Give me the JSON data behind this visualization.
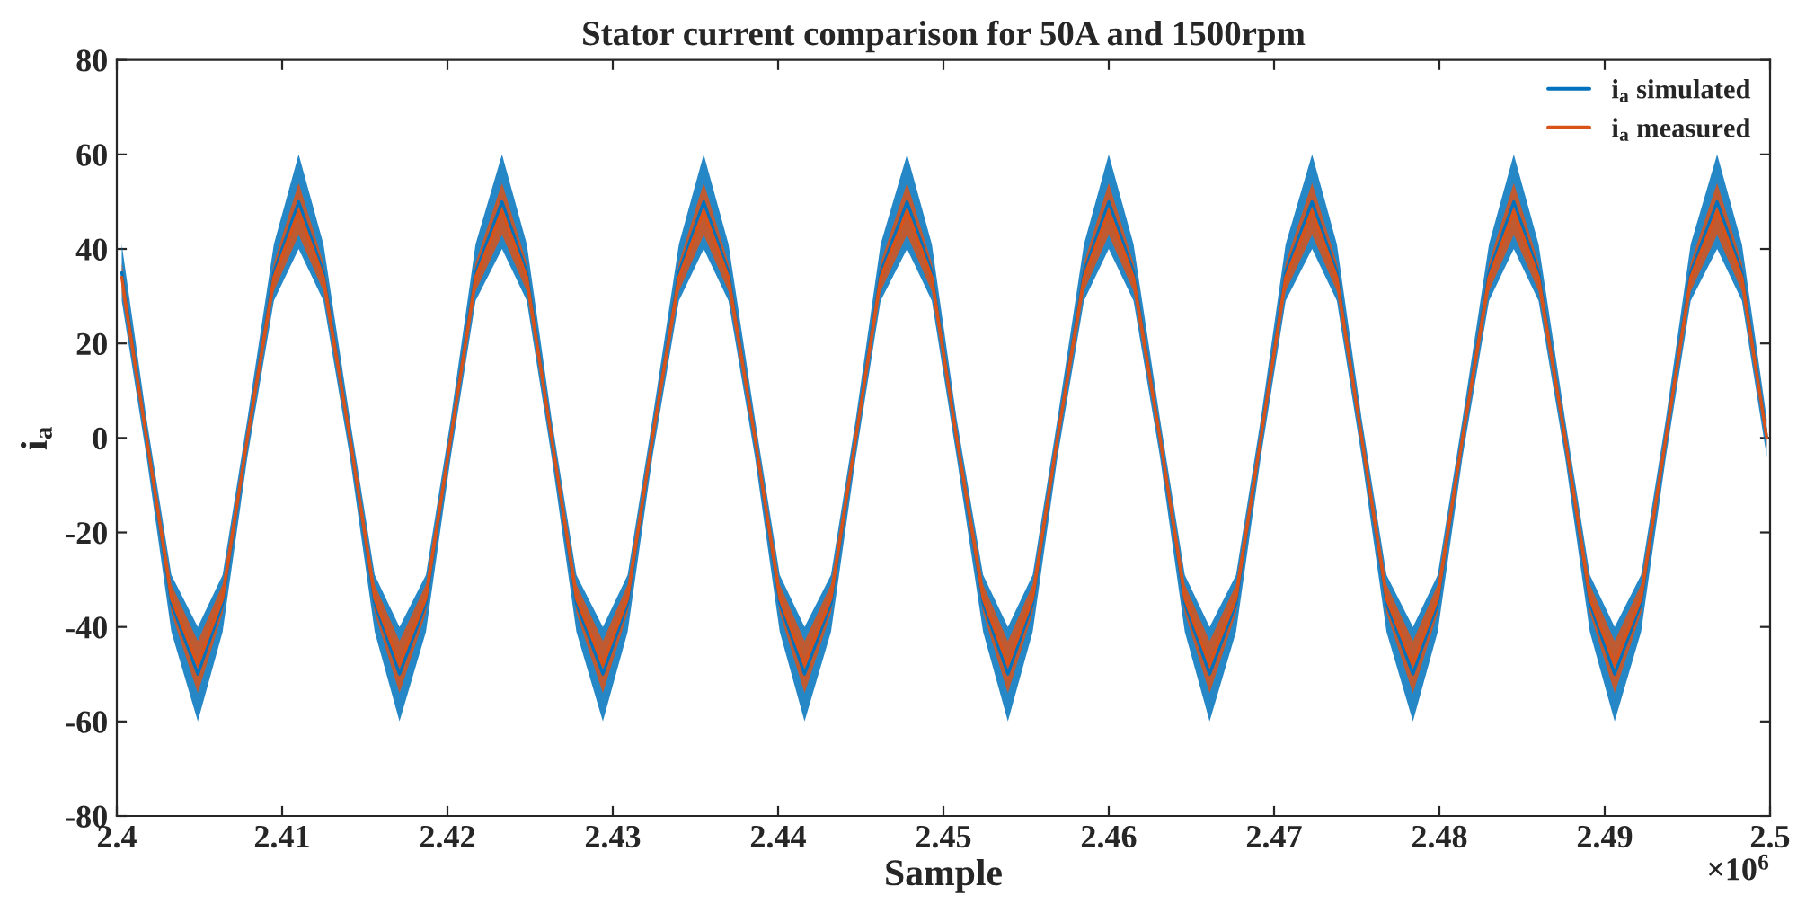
{
  "chart_data": {
    "type": "line",
    "title": "Stator current comparison for 50A and 1500rpm",
    "xlabel": "Sample",
    "ylabel": "i$_{a}$",
    "annotations": [
      "×10$^{6}$"
    ],
    "x": [
      2.4003,
      2.4018,
      2.4033,
      2.4049,
      2.4064,
      2.4079,
      2.4095,
      2.411,
      2.4125,
      2.4141,
      2.4156,
      2.4171,
      2.4187,
      2.4202,
      2.4217,
      2.4233,
      2.4248,
      2.4263,
      2.4278,
      2.4294,
      2.4309,
      2.4324,
      2.434,
      2.4355,
      2.437,
      2.4386,
      2.4401,
      2.4416,
      2.4432,
      2.4447,
      2.4462,
      2.4478,
      2.4493,
      2.4508,
      2.4524,
      2.4539,
      2.4554,
      2.4569,
      2.4585,
      2.46,
      2.4615,
      2.4631,
      2.4646,
      2.4661,
      2.4677,
      2.4692,
      2.4707,
      2.4723,
      2.4738,
      2.4753,
      2.4768,
      2.4784,
      2.4799,
      2.4814,
      2.483,
      2.4845,
      2.486,
      2.4876,
      2.4891,
      2.4906,
      2.4922,
      2.4937,
      2.4952,
      2.4968,
      2.4983,
      2.4998
    ],
    "series": [
      {
        "name": "i$_{a}$ simulated",
        "color": "#0072bd",
        "values": [
          35,
          0,
          -35,
          -50,
          -35,
          0,
          35,
          50,
          35,
          0,
          -35,
          -50,
          -35,
          0,
          35,
          50,
          35,
          0,
          -35,
          -50,
          -35,
          0,
          35,
          50,
          35,
          0,
          -35,
          -50,
          -35,
          0,
          35,
          50,
          35,
          0,
          -35,
          -50,
          -35,
          0,
          35,
          50,
          35,
          0,
          -35,
          -50,
          -35,
          0,
          35,
          50,
          35,
          0,
          -35,
          -50,
          -35,
          0,
          35,
          50,
          35,
          0,
          -35,
          -50,
          -35,
          0,
          35,
          50,
          35,
          0
        ],
        "lower": [
          29,
          -4,
          -41,
          -60,
          -41,
          -4,
          29,
          40,
          29,
          -4,
          -41,
          -60,
          -41,
          -4,
          29,
          40,
          29,
          -4,
          -41,
          -60,
          -41,
          -4,
          29,
          40,
          29,
          -4,
          -41,
          -60,
          -41,
          -4,
          29,
          40,
          29,
          -4,
          -41,
          -60,
          -41,
          -4,
          29,
          40,
          29,
          -4,
          -41,
          -60,
          -41,
          -4,
          29,
          40,
          29,
          -4,
          -41,
          -60,
          -41,
          -4,
          29,
          40,
          29,
          -4,
          -41,
          -60,
          -41,
          -4,
          29,
          40,
          29,
          -4
        ],
        "upper": [
          41,
          4,
          -29,
          -40,
          -29,
          4,
          41,
          60,
          41,
          4,
          -29,
          -40,
          -29,
          4,
          41,
          60,
          41,
          4,
          -29,
          -40,
          -29,
          4,
          41,
          60,
          41,
          4,
          -29,
          -40,
          -29,
          4,
          41,
          60,
          41,
          4,
          -29,
          -40,
          -29,
          4,
          41,
          60,
          41,
          4,
          -29,
          -40,
          -29,
          4,
          41,
          60,
          41,
          4,
          -29,
          -40,
          -29,
          4,
          41,
          60,
          41,
          4,
          -29,
          -40,
          -29,
          4,
          41,
          60,
          41,
          4
        ]
      },
      {
        "name": "i$_{a}$ measured",
        "color": "#d95319",
        "values": [
          34,
          0,
          -34,
          -48,
          -34,
          0,
          34,
          48,
          34,
          0,
          -34,
          -48,
          -34,
          0,
          34,
          48,
          34,
          0,
          -34,
          -48,
          -34,
          0,
          34,
          48,
          34,
          0,
          -34,
          -48,
          -34,
          0,
          34,
          48,
          34,
          0,
          -34,
          -48,
          -34,
          0,
          34,
          48,
          34,
          0,
          -34,
          -48,
          -34,
          0,
          34,
          48,
          34,
          0,
          -34,
          -48,
          -34,
          0,
          34,
          48,
          34,
          0,
          -34,
          -48,
          -34,
          0,
          34,
          48,
          34,
          0
        ],
        "lower": [
          31,
          -2,
          -37,
          -54,
          -37,
          -2,
          31,
          43,
          31,
          -2,
          -37,
          -54,
          -37,
          -2,
          31,
          43,
          31,
          -2,
          -37,
          -54,
          -37,
          -2,
          31,
          43,
          31,
          -2,
          -37,
          -54,
          -37,
          -2,
          31,
          43,
          31,
          -2,
          -37,
          -54,
          -37,
          -2,
          31,
          43,
          31,
          -2,
          -37,
          -54,
          -37,
          -2,
          31,
          43,
          31,
          -2,
          -37,
          -54,
          -37,
          -2,
          31,
          43,
          31,
          -2,
          -37,
          -54,
          -37,
          -2,
          31,
          43,
          31,
          -2
        ],
        "upper": [
          37,
          2,
          -31,
          -43,
          -31,
          2,
          37,
          54,
          37,
          2,
          -31,
          -43,
          -31,
          2,
          37,
          54,
          37,
          2,
          -31,
          -43,
          -31,
          2,
          37,
          54,
          37,
          2,
          -31,
          -43,
          -31,
          2,
          37,
          54,
          37,
          2,
          -31,
          -43,
          -31,
          2,
          37,
          54,
          37,
          2,
          -31,
          -43,
          -31,
          2,
          37,
          54,
          37,
          2,
          -31,
          -43,
          -31,
          2,
          37,
          54,
          37,
          2,
          -31,
          -43,
          -31,
          2,
          37,
          54,
          37,
          2
        ]
      }
    ],
    "xlim": [
      2.4,
      2.5
    ],
    "xticks": [
      2.4,
      2.41,
      2.42,
      2.43,
      2.44,
      2.45,
      2.46,
      2.47,
      2.48,
      2.49,
      2.5
    ],
    "ylim": [
      -80,
      80
    ],
    "yticks": [
      -80,
      -60,
      -40,
      -20,
      0,
      20,
      40,
      60,
      80
    ],
    "grid": false,
    "legend": "top right",
    "line_style": "solid",
    "marker": "none"
  }
}
